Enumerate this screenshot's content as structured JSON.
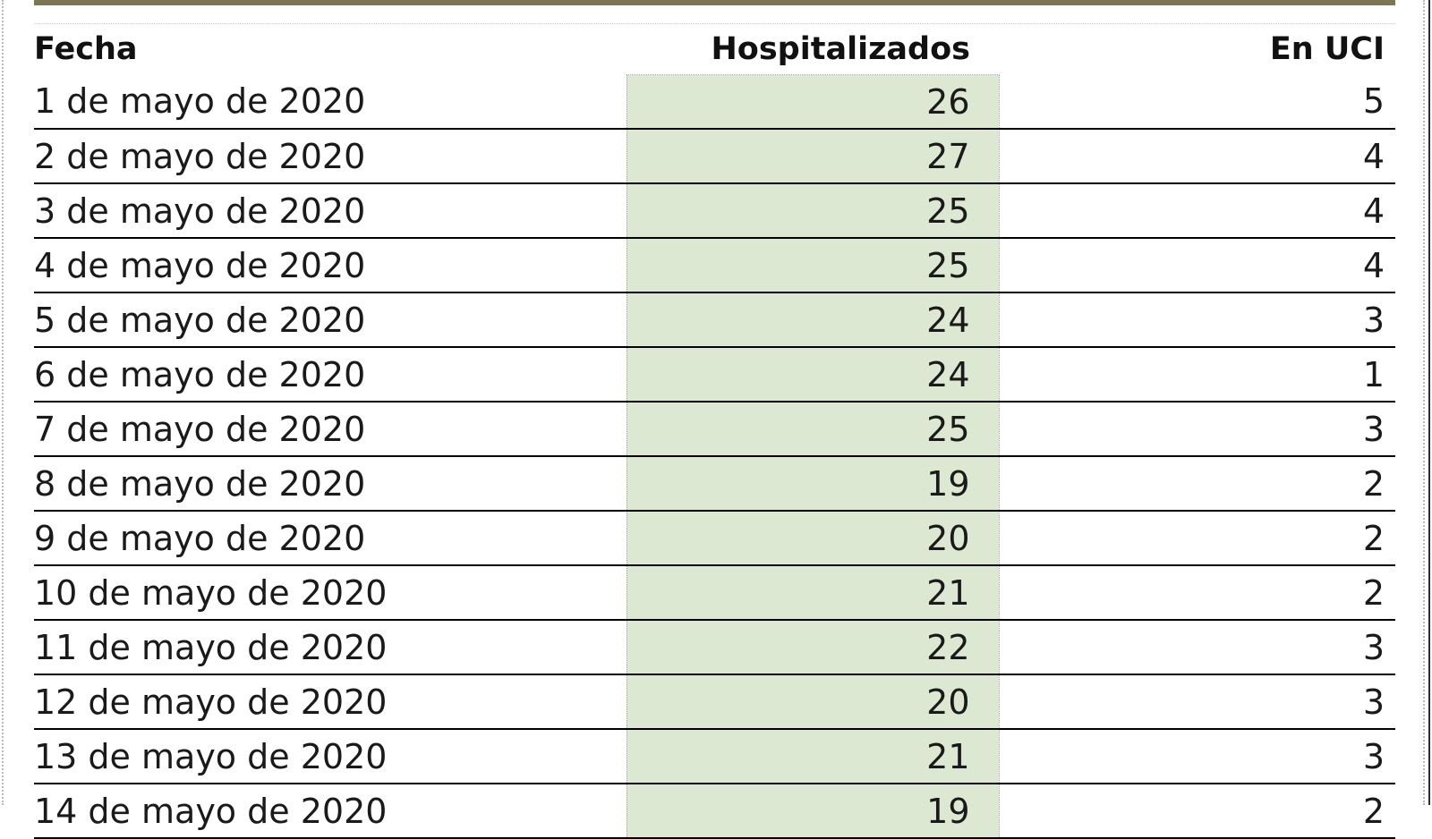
{
  "chart_data": {
    "type": "table",
    "columns": [
      "Fecha",
      "Hospitalizados",
      "En UCI"
    ],
    "rows": [
      {
        "fecha": "1 de mayo de 2020",
        "hospitalizados": "26",
        "uci": "5"
      },
      {
        "fecha": "2 de mayo de 2020",
        "hospitalizados": "27",
        "uci": "4"
      },
      {
        "fecha": "3 de mayo de 2020",
        "hospitalizados": "25",
        "uci": "4"
      },
      {
        "fecha": "4 de mayo de 2020",
        "hospitalizados": "25",
        "uci": "4"
      },
      {
        "fecha": "5 de mayo de 2020",
        "hospitalizados": "24",
        "uci": "3"
      },
      {
        "fecha": "6 de mayo de 2020",
        "hospitalizados": "24",
        "uci": "1"
      },
      {
        "fecha": "7 de mayo de 2020",
        "hospitalizados": "25",
        "uci": "3"
      },
      {
        "fecha": "8 de mayo de 2020",
        "hospitalizados": "19",
        "uci": "2"
      },
      {
        "fecha": "9 de mayo de 2020",
        "hospitalizados": "20",
        "uci": "2"
      },
      {
        "fecha": "10 de mayo de 2020",
        "hospitalizados": "21",
        "uci": "2"
      },
      {
        "fecha": "11 de mayo de 2020",
        "hospitalizados": "22",
        "uci": "3"
      },
      {
        "fecha": "12 de mayo de 2020",
        "hospitalizados": "20",
        "uci": "3"
      },
      {
        "fecha": "13 de mayo de 2020",
        "hospitalizados": "21",
        "uci": "3"
      },
      {
        "fecha": "14 de mayo de 2020",
        "hospitalizados": "19",
        "uci": "2"
      }
    ]
  },
  "colors": {
    "highlight_column": "#dde8d3",
    "top_bar": "#7a7656",
    "row_rule": "#000000"
  }
}
